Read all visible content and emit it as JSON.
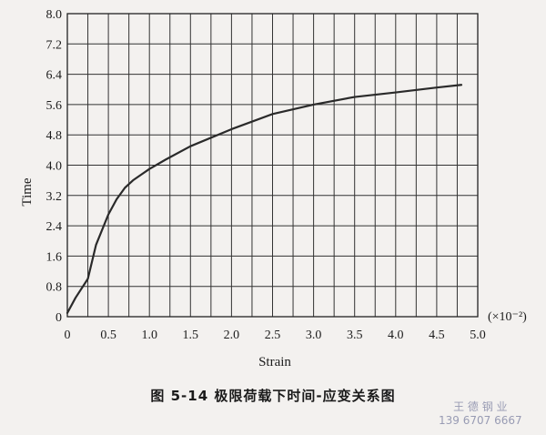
{
  "chart_data": {
    "type": "line",
    "title": "",
    "xlabel": "Strain",
    "ylabel": "Time",
    "x_unit": "(×10⁻²)",
    "xlim": [
      0,
      5.0
    ],
    "ylim": [
      0,
      8.0
    ],
    "x_ticks": [
      "0",
      "0.5",
      "1.0",
      "1.5",
      "2.0",
      "2.5",
      "3.0",
      "3.5",
      "4.0",
      "4.5",
      "5.0"
    ],
    "y_ticks": [
      "0",
      "0.8",
      "1.6",
      "2.4",
      "3.2",
      "4.0",
      "4.8",
      "5.6",
      "6.4",
      "7.2",
      "8.0"
    ],
    "grid": true,
    "series": [
      {
        "x": [
          0.0,
          0.1,
          0.25,
          0.35,
          0.5,
          0.6,
          0.7,
          0.8,
          0.9,
          1.0,
          1.2,
          1.5,
          2.0,
          2.5,
          3.0,
          3.5,
          4.0,
          4.5,
          4.8
        ],
        "y": [
          0.1,
          0.5,
          1.0,
          1.9,
          2.7,
          3.1,
          3.4,
          3.6,
          3.75,
          3.9,
          4.15,
          4.5,
          4.95,
          5.35,
          5.6,
          5.8,
          5.92,
          6.05,
          6.12
        ]
      }
    ]
  },
  "caption": "图 5-14   极限荷载下时间-应变关系图",
  "watermark": {
    "line1": "王 德 钢 业",
    "line2": "139 6707 6667"
  }
}
